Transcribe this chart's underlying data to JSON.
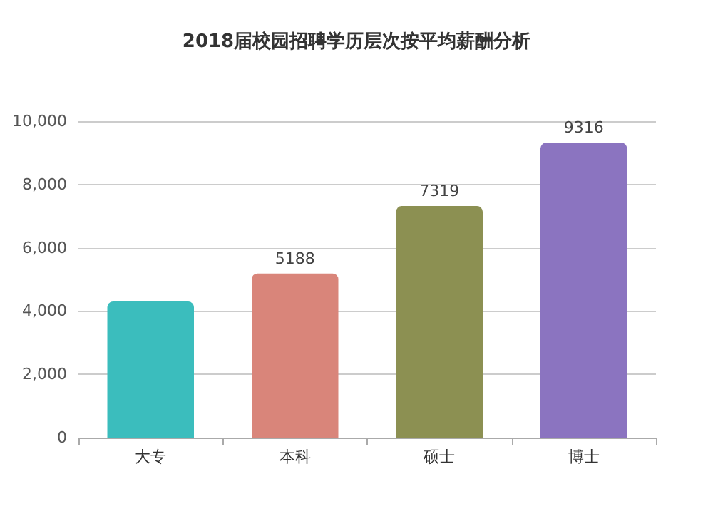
{
  "chart_data": {
    "type": "bar",
    "title": "2018届校园招聘学历层次按平均薪酬分析",
    "categories": [
      "大专",
      "本科",
      "硕士",
      "博士"
    ],
    "values": [
      4300,
      5188,
      7319,
      9316
    ],
    "value_labels": [
      null,
      "5188",
      "7319",
      "9316"
    ],
    "colors": [
      "#3bbdbd",
      "#d9857a",
      "#8c9052",
      "#8b74c0"
    ],
    "ylim": [
      0,
      10000
    ],
    "yticks": [
      {
        "value": 0,
        "label": "0"
      },
      {
        "value": 2000,
        "label": "2,000"
      },
      {
        "value": 4000,
        "label": "4,000"
      },
      {
        "value": 6000,
        "label": "6,000"
      },
      {
        "value": 8000,
        "label": "8,000"
      },
      {
        "value": 10000,
        "label": "10,000"
      }
    ],
    "grid": "y"
  }
}
